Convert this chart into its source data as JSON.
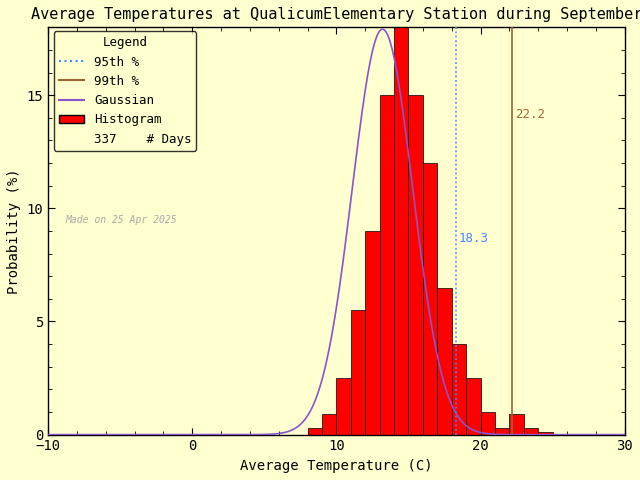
{
  "title": "Average Temperatures at QualicumElementary Station during September",
  "xlabel": "Average Temperature (C)",
  "ylabel": "Probability (%)",
  "xlim": [
    -10,
    30
  ],
  "ylim": [
    0,
    18
  ],
  "ylim_top_clipped": true,
  "n_days": 337,
  "mean": 13.2,
  "std": 2.1,
  "percentile_95": 18.3,
  "percentile_99": 22.2,
  "percentile_95_color": "#4488ff",
  "percentile_99_color": "#996633",
  "gaussian_color": "#8855cc",
  "hist_color": "#ff0000",
  "hist_edgecolor": "#000000",
  "hist_linewidth": 0.5,
  "made_on": "Made on 25 Apr 2025",
  "background_color": "#ffffd0",
  "axes_bg_color": "#ffffd0",
  "bin_edges": [
    8,
    9,
    10,
    11,
    12,
    13,
    14,
    15,
    16,
    17,
    18,
    19,
    20,
    21,
    22,
    23,
    24
  ],
  "bin_probs": [
    0.3,
    0.9,
    2.5,
    5.5,
    9.0,
    15.0,
    18.5,
    15.0,
    12.0,
    6.5,
    4.0,
    2.5,
    1.0,
    0.3,
    0.9,
    0.3,
    0.1
  ],
  "label_fontsize": 10,
  "title_fontsize": 11,
  "legend_fontsize": 9,
  "tick_label_fontsize": 10
}
